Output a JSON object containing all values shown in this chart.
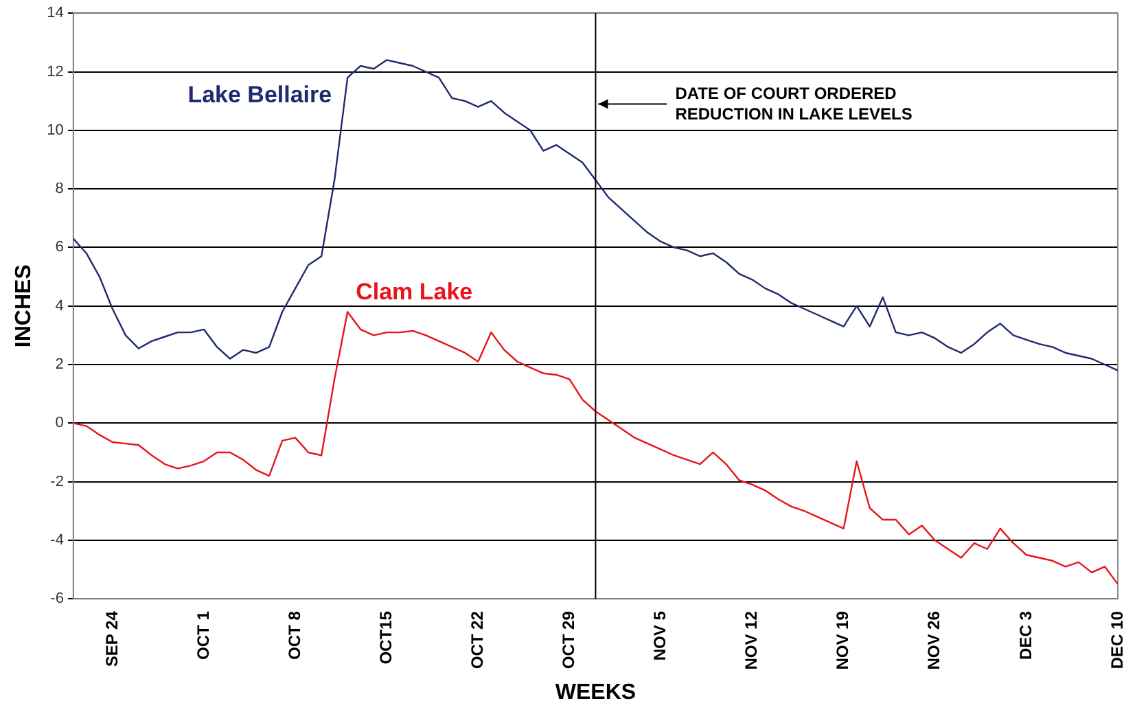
{
  "chart_data": {
    "type": "line",
    "xlabel": "WEEKS",
    "ylabel": "INCHES",
    "x": [
      "--09-21",
      "--09-22",
      "--09-23",
      "--09-24",
      "--09-25",
      "--09-26",
      "--09-27",
      "--09-28",
      "--09-29",
      "--09-30",
      "--10-01",
      "--10-02",
      "--10-03",
      "--10-04",
      "--10-05",
      "--10-06",
      "--10-07",
      "--10-08",
      "--10-09",
      "--10-10",
      "--10-11",
      "--10-12",
      "--10-13",
      "--10-14",
      "--10-15",
      "--10-16",
      "--10-17",
      "--10-18",
      "--10-19",
      "--10-20",
      "--10-21",
      "--10-22",
      "--10-23",
      "--10-24",
      "--10-25",
      "--10-26",
      "--10-27",
      "--10-28",
      "--10-29",
      "--10-30",
      "--10-31",
      "--11-01",
      "--11-02",
      "--11-03",
      "--11-04",
      "--11-05",
      "--11-06",
      "--11-07",
      "--11-08",
      "--11-09",
      "--11-10",
      "--11-11",
      "--11-12",
      "--11-13",
      "--11-14",
      "--11-15",
      "--11-16",
      "--11-17",
      "--11-18",
      "--11-19",
      "--11-20",
      "--11-21",
      "--11-22",
      "--11-23",
      "--11-24",
      "--11-25",
      "--11-26",
      "--11-27",
      "--11-28",
      "--11-29",
      "--11-30",
      "--12-01",
      "--12-02",
      "--12-03",
      "--12-04",
      "--12-05",
      "--12-06",
      "--12-07",
      "--12-08",
      "--12-09",
      "--12-10"
    ],
    "series": [
      {
        "name": "Lake Bellaire",
        "color": "#1f2a6e",
        "values": [
          6.3,
          5.8,
          5.0,
          3.9,
          3.0,
          2.55,
          2.8,
          2.95,
          3.1,
          3.1,
          3.2,
          2.6,
          2.2,
          2.5,
          2.4,
          2.6,
          3.8,
          4.6,
          5.4,
          5.7,
          8.3,
          11.8,
          12.2,
          12.1,
          12.4,
          12.3,
          12.2,
          12.0,
          11.8,
          11.1,
          11.0,
          10.8,
          11.0,
          10.6,
          10.3,
          10.0,
          9.3,
          9.5,
          9.2,
          8.9,
          8.3,
          7.7,
          7.3,
          6.9,
          6.5,
          6.2,
          6.0,
          5.9,
          5.7,
          5.8,
          5.5,
          5.1,
          4.9,
          4.6,
          4.4,
          4.1,
          3.9,
          3.7,
          3.5,
          3.3,
          4.0,
          3.3,
          4.3,
          3.1,
          3.0,
          3.1,
          2.9,
          2.6,
          2.4,
          2.7,
          3.1,
          3.4,
          3.0,
          2.85,
          2.7,
          2.6,
          2.4,
          2.3,
          2.2,
          2.0,
          1.8
        ]
      },
      {
        "name": "Clam Lake",
        "color": "#e8141b",
        "values": [
          0.0,
          -0.1,
          -0.4,
          -0.65,
          -0.7,
          -0.75,
          -1.1,
          -1.4,
          -1.55,
          -1.45,
          -1.3,
          -1.0,
          -1.0,
          -1.25,
          -1.6,
          -1.8,
          -0.6,
          -0.5,
          -1.0,
          -1.1,
          1.5,
          3.8,
          3.2,
          3.0,
          3.1,
          3.1,
          3.15,
          3.0,
          2.8,
          2.6,
          2.4,
          2.1,
          3.1,
          2.5,
          2.1,
          1.9,
          1.7,
          1.65,
          1.5,
          0.8,
          0.4,
          0.1,
          -0.2,
          -0.5,
          -0.7,
          -0.9,
          -1.1,
          -1.25,
          -1.4,
          -1.0,
          -1.4,
          -1.95,
          -2.1,
          -2.3,
          -2.6,
          -2.85,
          -3.0,
          -3.2,
          -3.4,
          -3.6,
          -1.3,
          -2.9,
          -3.3,
          -3.3,
          -3.8,
          -3.5,
          -4.0,
          -4.3,
          -4.6,
          -4.1,
          -4.3,
          -3.6,
          -4.1,
          -4.5,
          -4.6,
          -4.7,
          -4.9,
          -4.75,
          -5.1,
          -4.9,
          -5.5
        ]
      }
    ],
    "xlim": [
      "--09-21",
      "--12-10"
    ],
    "xticks": [
      {
        "value": "--09-24",
        "label": "SEP 24"
      },
      {
        "value": "--10-01",
        "label": "OCT 1"
      },
      {
        "value": "--10-08",
        "label": "OCT 8"
      },
      {
        "value": "--10-15",
        "label": "OCT15"
      },
      {
        "value": "--10-22",
        "label": "OCT 22"
      },
      {
        "value": "--10-29",
        "label": "OCT 29"
      },
      {
        "value": "--11-05",
        "label": "NOV 5"
      },
      {
        "value": "--11-12",
        "label": "NOV 12"
      },
      {
        "value": "--11-19",
        "label": "NOV 19"
      },
      {
        "value": "--11-26",
        "label": "NOV 26"
      },
      {
        "value": "--12-03",
        "label": "DEC 3"
      },
      {
        "value": "--12-10",
        "label": "DEC 10"
      }
    ],
    "ylim": [
      -6,
      14
    ],
    "yticks": [
      -6,
      -4,
      -2,
      0,
      2,
      4,
      6,
      8,
      10,
      12,
      14
    ],
    "ref_lines": [
      {
        "axis": "x",
        "value": "--10-31",
        "label": "DATE OF COURT ORDERED\nREDUCTION IN LAKE LEVELS",
        "color": "#000000"
      }
    ],
    "grid": "y",
    "legend": false,
    "marker": "none",
    "line_style": "solid"
  }
}
